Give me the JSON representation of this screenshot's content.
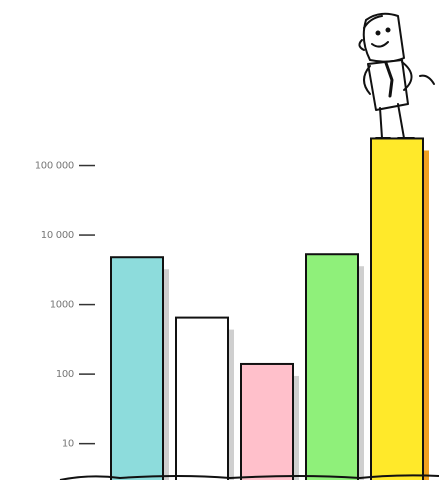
{
  "chart_data": {
    "type": "bar",
    "categories": [
      null,
      null,
      null,
      null,
      null
    ],
    "series": [
      {
        "values": [
          4800,
          650,
          140,
          5300,
          245000
        ],
        "colors": [
          "#8ddcdc",
          "#ffffff",
          "#ffc0cb",
          "#8ff07a",
          "#ffe92a"
        ]
      }
    ],
    "log_scale": true,
    "ylim": [
      3,
      1000000
    ],
    "yticks": [
      10,
      100,
      1000,
      {
        "value": 10000,
        "label": "10 000"
      },
      {
        "value": 100000,
        "label": "100 000"
      }
    ]
  }
}
